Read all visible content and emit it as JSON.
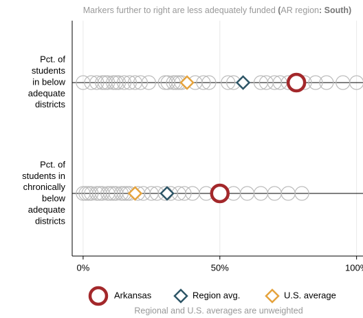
{
  "chart_data": {
    "type": "dot",
    "title_parts": [
      {
        "text": "Markers further to right are less adequately funded ",
        "bold": false
      },
      {
        "text": "(",
        "bold": true
      },
      {
        "text": "AR region",
        "bold": false
      },
      {
        "text": ": South)",
        "bold": true
      }
    ],
    "categories": [
      [
        "Pct. of",
        "students",
        "in below",
        "adequate",
        "districts"
      ],
      [
        "Pct. of",
        "students in",
        "chronically",
        "below",
        "adequate",
        "districts"
      ]
    ],
    "points": [
      [
        0,
        3,
        5,
        7,
        8,
        9,
        11,
        12,
        13,
        15,
        17,
        19,
        21,
        24,
        30,
        31,
        33,
        34,
        35,
        36,
        41,
        44,
        46,
        53,
        55,
        65,
        67,
        70,
        72,
        75,
        81,
        85,
        89,
        95,
        100
      ],
      [
        0,
        1,
        2,
        3,
        5,
        6,
        7,
        9,
        10,
        11,
        12,
        14,
        15,
        16,
        17,
        20,
        22,
        25,
        27,
        30,
        32,
        35,
        37,
        40,
        45,
        55,
        60,
        65,
        70,
        75,
        80
      ]
    ],
    "points_color": "#bbbbbb",
    "series": [
      {
        "name": "Arkansas",
        "color": "#a3282b",
        "marker": "circle",
        "values": [
          78,
          50
        ]
      },
      {
        "name": "Region avg.",
        "color": "#2d5566",
        "marker": "diamond",
        "values": [
          58.5,
          30.7
        ]
      },
      {
        "name": "U.S. average",
        "color": "#e5a33d",
        "marker": "diamond",
        "values": [
          38,
          19
        ]
      }
    ],
    "xlim": [
      -4,
      102.5
    ],
    "xticks": [
      {
        "value": 0,
        "label": "0%"
      },
      {
        "value": 50,
        "label": "50%"
      },
      {
        "value": 100,
        "label": "100%"
      }
    ],
    "grid": true,
    "legend": "bottom",
    "note": "Regional and U.S. averages are unweighted"
  }
}
